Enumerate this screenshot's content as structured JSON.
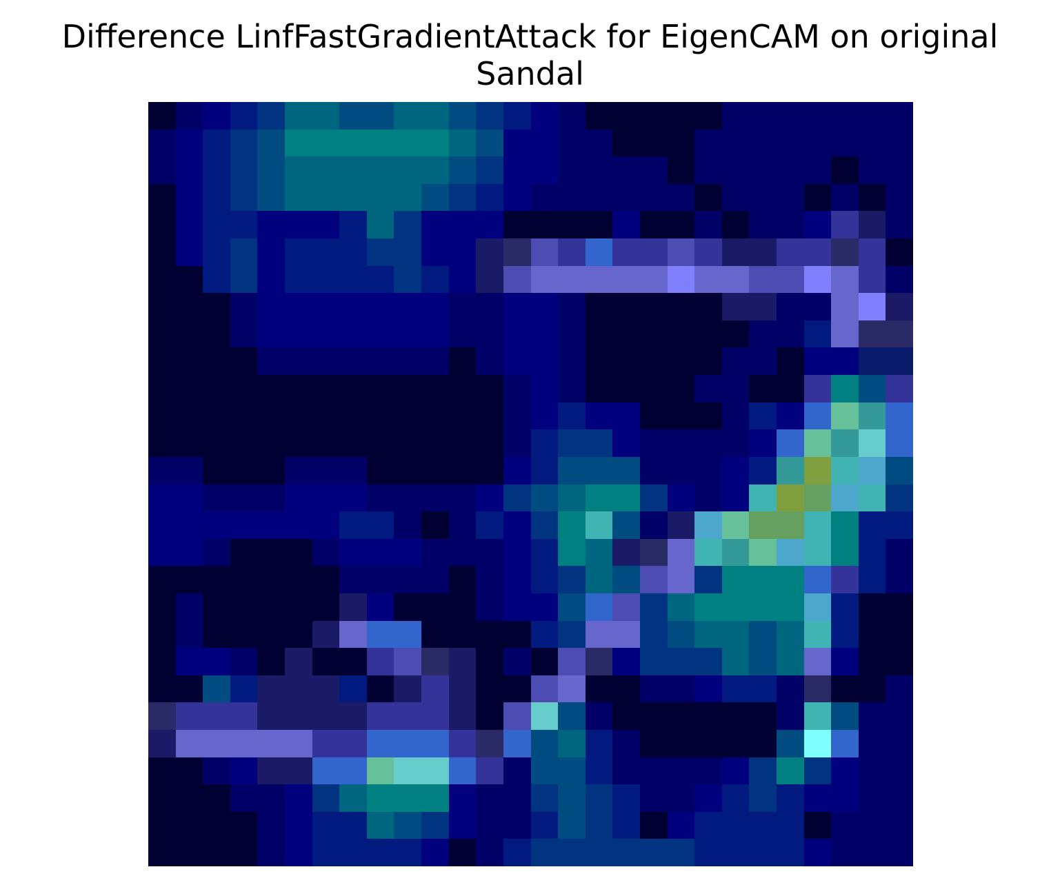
{
  "chart_data": {
    "type": "heatmap",
    "title": [
      "Difference LinfFastGradientAttack for EigenCAM on original",
      "Sandal"
    ],
    "axes_visible": false,
    "grid": false,
    "rows": 28,
    "cols": 28,
    "palette": [
      "#000033",
      "#000066",
      "#00007f",
      "#001a7f",
      "#003380",
      "#004c80",
      "#006680",
      "#008080",
      "#1a1a66",
      "#333399",
      "#4c4cb3",
      "#6666cc",
      "#8080ff",
      "#3366cc",
      "#4da6cc",
      "#66cccc",
      "#80ffff",
      "#40b3b3",
      "#339999",
      "#80a040",
      "#66a060",
      "#66c099",
      "#2a2a66",
      "#0a1a6a"
    ],
    "cells": [
      "0101231101234667776543210000000000000000000000000",
      "...(see script: generated grid)"
    ]
  }
}
